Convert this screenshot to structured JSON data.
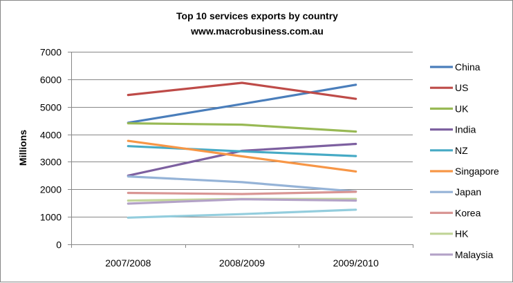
{
  "chart_data": {
    "type": "line",
    "title": "Top 10 services exports by country",
    "subtitle": "www.macrobusiness.com.au",
    "xlabel": "",
    "ylabel": "Millions",
    "ylim": [
      0,
      7000
    ],
    "yticks": [
      "0",
      "1000",
      "2000",
      "3000",
      "4000",
      "5000",
      "6000",
      "7000"
    ],
    "categories": [
      "2007/2008",
      "2008/2009",
      "2009/2010"
    ],
    "grid": true,
    "legend": "right",
    "series": [
      {
        "name": "China",
        "color": "#4A7EBB",
        "values": [
          4420,
          5100,
          5800
        ]
      },
      {
        "name": "US",
        "color": "#BE4B48",
        "values": [
          5430,
          5870,
          5290
        ]
      },
      {
        "name": "UK",
        "color": "#98B954",
        "values": [
          4400,
          4350,
          4100
        ]
      },
      {
        "name": "India",
        "color": "#7D60A0",
        "values": [
          2500,
          3400,
          3650
        ]
      },
      {
        "name": "NZ",
        "color": "#46AAC5",
        "values": [
          3570,
          3380,
          3210
        ]
      },
      {
        "name": "Singapore",
        "color": "#F79646",
        "values": [
          3760,
          3200,
          2650
        ]
      },
      {
        "name": "Japan",
        "color": "#95B3D7",
        "values": [
          2470,
          2260,
          1920
        ]
      },
      {
        "name": "Korea",
        "color": "#D99694",
        "values": [
          1870,
          1830,
          1910
        ]
      },
      {
        "name": "HK",
        "color": "#C3D69B",
        "values": [
          1590,
          1650,
          1650
        ]
      },
      {
        "name": "Malaysia",
        "color": "#B3A2C7",
        "values": [
          1480,
          1640,
          1590
        ]
      },
      {
        "name": "",
        "color": "#93CDDD",
        "values": [
          970,
          1100,
          1260
        ]
      }
    ]
  }
}
